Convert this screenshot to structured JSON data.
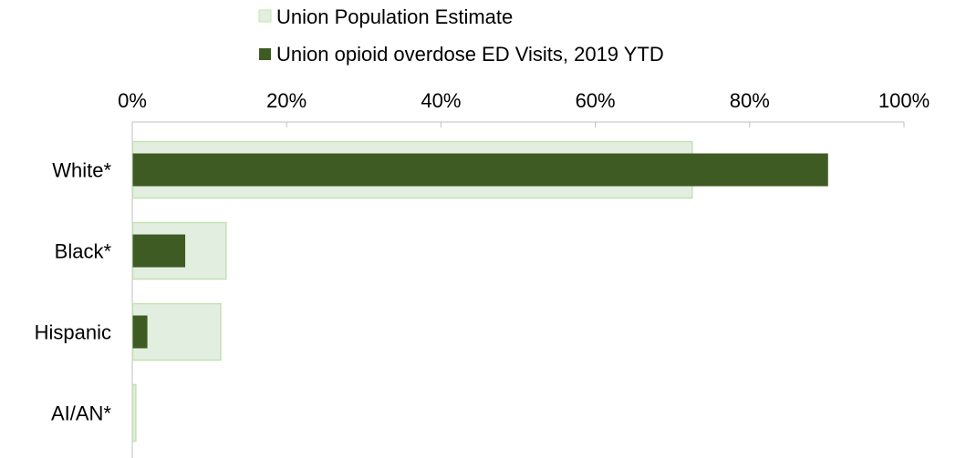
{
  "chart_data": {
    "type": "bar",
    "orientation": "horizontal",
    "categories": [
      "White*",
      "Black*",
      "Hispanic",
      "AI/AN*"
    ],
    "series": [
      {
        "name": "Union Population Estimate",
        "values": [
          72.5,
          12.1,
          11.4,
          0.4
        ],
        "color": "#e2efe0",
        "border_color": "#c5e0b4"
      },
      {
        "name": "Union opioid overdose ED Visits, 2019 YTD",
        "values": [
          90.1,
          6.8,
          1.9,
          0
        ],
        "color": "#3e5b24"
      }
    ],
    "xlim": [
      0,
      100
    ],
    "x_ticks": [
      "0%",
      "20%",
      "40%",
      "60%",
      "80%",
      "100%"
    ],
    "x_axis_position": "top",
    "grid": false,
    "legend_position": "top"
  }
}
